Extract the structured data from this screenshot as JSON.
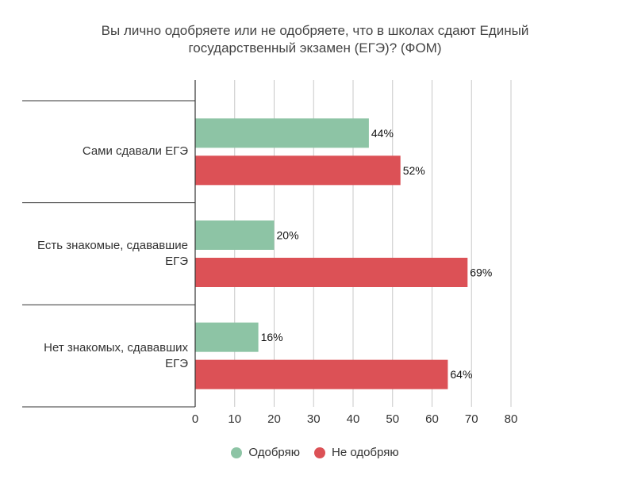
{
  "chart_data": {
    "type": "bar",
    "orientation": "horizontal",
    "title_lines": [
      "Вы лично одобряете или не одобряете, что в школах сдают Единый",
      "государственный экзамен (ЕГЭ)? (ФОМ)"
    ],
    "categories": [
      [
        "Сами сдавали ЕГЭ"
      ],
      [
        "Есть знакомые, сдававшие",
        "ЕГЭ"
      ],
      [
        "Нет знакомых, сдававших",
        "ЕГЭ"
      ]
    ],
    "series": [
      {
        "name": "Одобряю",
        "color": "#8dc4a5",
        "values": [
          44,
          20,
          16
        ],
        "labels": [
          "44%",
          "20%",
          "16%"
        ]
      },
      {
        "name": "Не одобряю",
        "color": "#dc5156",
        "values": [
          52,
          69,
          64
        ],
        "labels": [
          "52%",
          "69%",
          "64%"
        ]
      }
    ],
    "xlim": [
      0,
      80
    ],
    "x_ticks": [
      "0",
      "10",
      "20",
      "30",
      "40",
      "50",
      "60",
      "70",
      "80"
    ],
    "grid": true,
    "legend_position": "bottom"
  }
}
